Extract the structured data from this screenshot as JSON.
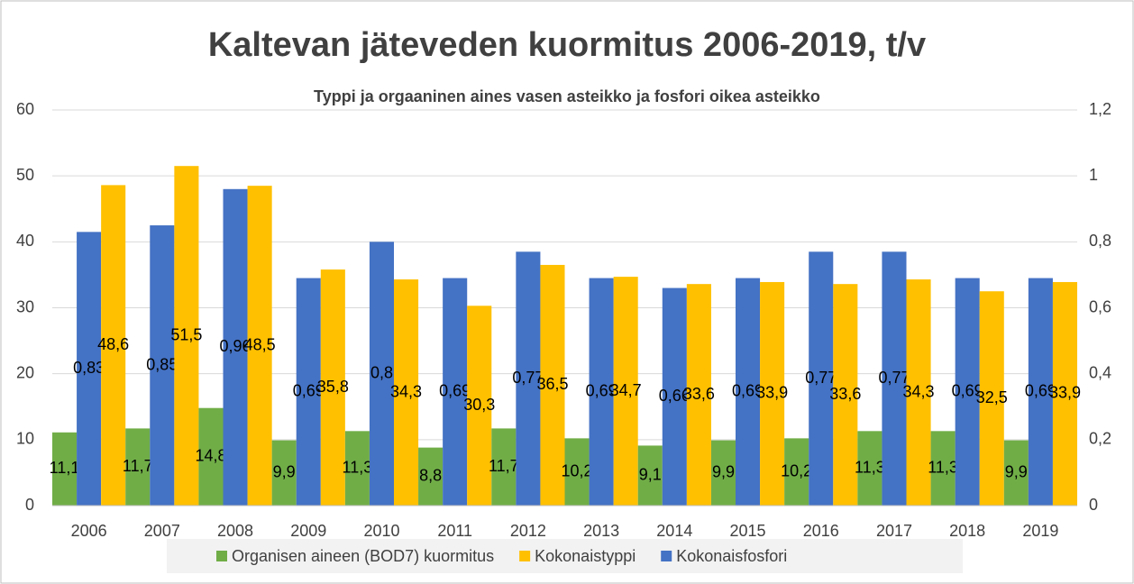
{
  "chart_data": {
    "type": "bar",
    "title": "Kaltevan jäteveden kuormitus 2006-2019, t/v",
    "subtitle": "Typpi ja orgaaninen aines vasen asteikko ja fosfori oikea asteikko",
    "categories": [
      "2006",
      "2007",
      "2008",
      "2009",
      "2010",
      "2011",
      "2012",
      "2013",
      "2014",
      "2015",
      "2016",
      "2017",
      "2018",
      "2019"
    ],
    "series": [
      {
        "name": "Organisen aineen (BOD7) kuormitus",
        "color": "#70ad47",
        "axis": "y",
        "values": [
          11.1,
          11.7,
          14.8,
          9.9,
          11.3,
          8.8,
          11.7,
          10.2,
          9.1,
          9.9,
          10.2,
          11.3,
          11.3,
          9.9
        ],
        "value_labels": [
          "11,1",
          "11,7",
          "14,8",
          "9,9",
          "11,3",
          "8,8",
          "11,7",
          "10,2",
          "9,1",
          "9,9",
          "10,2",
          "11,3",
          "11,3",
          "9,9"
        ]
      },
      {
        "name": "Kokonaisfosfori",
        "color": "#4472c4",
        "axis": "y2",
        "values": [
          0.83,
          0.85,
          0.96,
          0.69,
          0.8,
          0.69,
          0.77,
          0.69,
          0.66,
          0.69,
          0.77,
          0.77,
          0.69,
          0.69
        ],
        "value_labels": [
          "0,83",
          "0,85",
          "0,96",
          "0,69",
          "0,8",
          "0,69",
          "0,77",
          "0,69",
          "0,66",
          "0,69",
          "0,77",
          "0,77",
          "0,69",
          "0,69"
        ]
      },
      {
        "name": "Kokonaistyppi",
        "color": "#ffc000",
        "axis": "y",
        "values": [
          48.6,
          51.5,
          48.5,
          35.8,
          34.3,
          30.3,
          36.5,
          34.7,
          33.6,
          33.9,
          33.6,
          34.3,
          32.5,
          33.9
        ],
        "value_labels": [
          "48,6",
          "51,5",
          "48,5",
          "35,8",
          "34,3",
          "30,3",
          "36,5",
          "34,7",
          "33,6",
          "33,9",
          "33,6",
          "34,3",
          "32,5",
          "33,9"
        ]
      }
    ],
    "legend_order": [
      0,
      2,
      1
    ],
    "ylim": [
      0,
      60
    ],
    "yticks": [
      0,
      10,
      20,
      30,
      40,
      50,
      60
    ],
    "y2lim": [
      0,
      1.2
    ],
    "y2ticks": [
      0,
      {
        "value": 0.2,
        "label": "0,2"
      },
      {
        "value": 0.4,
        "label": "0,4"
      },
      {
        "value": 0.6,
        "label": "0,6"
      },
      {
        "value": 0.8,
        "label": "0,8"
      },
      1,
      {
        "value": 1.2,
        "label": "1,2"
      }
    ],
    "grid": true
  }
}
